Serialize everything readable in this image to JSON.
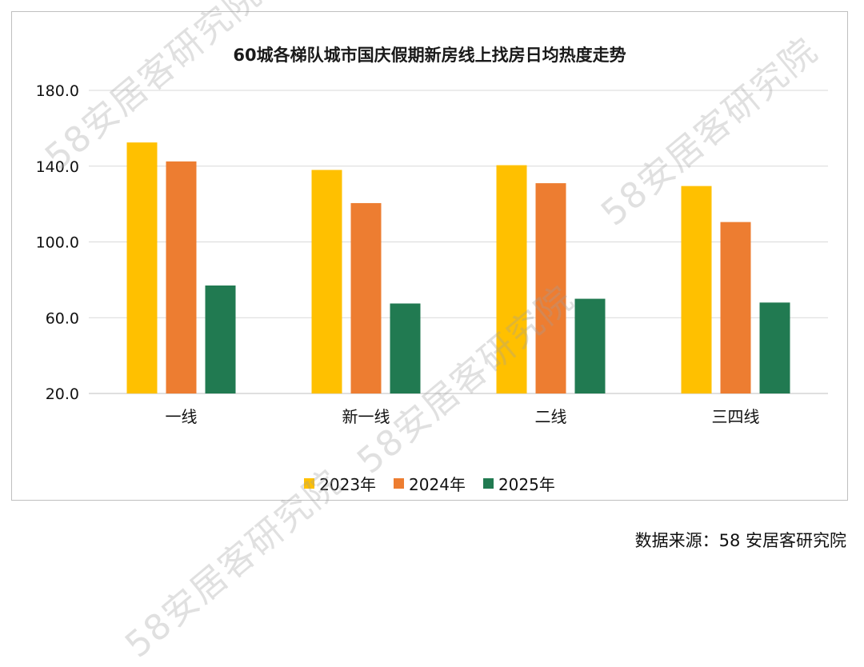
{
  "chart_data": {
    "type": "bar",
    "title": "60城各梯队城市国庆假期新房线上找房日均热度走势",
    "categories": [
      "一线",
      "新一线",
      "二线",
      "三四线"
    ],
    "series": [
      {
        "name": "2023年",
        "color": "#FFC000",
        "values": [
          152.5,
          138.0,
          140.5,
          129.5
        ]
      },
      {
        "name": "2024年",
        "color": "#ED7D31",
        "values": [
          142.5,
          120.5,
          131.0,
          110.5
        ]
      },
      {
        "name": "2025年",
        "color": "#217A51",
        "values": [
          77.0,
          67.5,
          70.0,
          68.0
        ]
      }
    ],
    "y_ticks": [
      "20.0",
      "60.0",
      "100.0",
      "140.0",
      "180.0"
    ],
    "ylim": [
      20,
      180
    ],
    "grid": true,
    "legend_position": "bottom"
  },
  "source": "数据来源：58 安居客研究院",
  "watermark_text": "58安居客研究院"
}
